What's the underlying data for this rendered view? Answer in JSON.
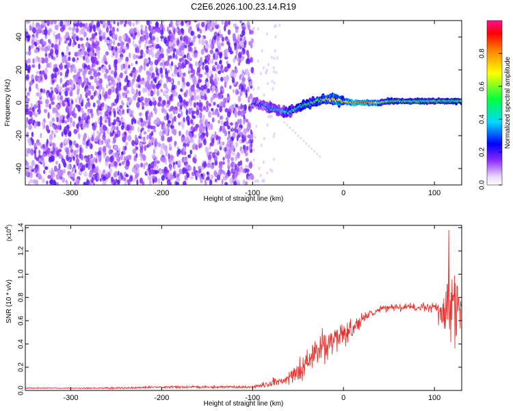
{
  "title": "C2E6.2026.100.23.14.R19",
  "chart_data": [
    {
      "type": "heatmap",
      "xlabel": "Height of straight line (km)",
      "ylabel": "Frequency (Hz)",
      "xlim": [
        -350,
        130
      ],
      "ylim": [
        -50,
        50
      ],
      "xticks": [
        -300,
        -200,
        -100,
        0,
        100
      ],
      "yticks": [
        -40,
        -20,
        0,
        20,
        40
      ],
      "colorbar": {
        "label": "Normalized spectral amplitude",
        "range": [
          0,
          1
        ],
        "ticks": [
          0.0,
          0.2,
          0.4,
          0.6,
          0.8
        ],
        "tick_labels": [
          "0.0",
          "0.2",
          "0.4",
          "0.6",
          "0.8"
        ]
      },
      "grid": false,
      "ridge": {
        "x": [
          -100,
          -90,
          -80,
          -70,
          -60,
          -50,
          -40,
          -30,
          -20,
          -10,
          0,
          10,
          20,
          30,
          40,
          50,
          60,
          70,
          80,
          90,
          100,
          110,
          120,
          130
        ],
        "y": [
          0,
          -1,
          -3,
          -5,
          -6,
          -3,
          -1,
          1,
          2,
          2,
          1,
          0,
          0,
          0,
          0,
          1,
          1,
          1,
          1,
          1,
          1,
          1,
          1,
          1
        ],
        "amplitude": [
          0.3,
          0.3,
          0.4,
          0.4,
          0.5,
          0.5,
          0.6,
          0.6,
          0.7,
          0.8,
          0.7,
          0.9,
          0.95,
          0.9,
          0.7,
          0.6,
          0.6,
          0.6,
          0.6,
          0.6,
          0.6,
          0.6,
          0.6,
          0.6
        ]
      },
      "noise_region_x": [
        -350,
        -100
      ],
      "noise_amplitude": 0.25
    },
    {
      "type": "line",
      "xlabel": "Height of straight line (km)",
      "ylabel": "SNR (10 * v/v)",
      "yscale_label": "(x10",
      "yscale_exponent": "4",
      "yscale_close": ")",
      "xlim": [
        -350,
        130
      ],
      "ylim": [
        0,
        1.42
      ],
      "xticks": [
        -300,
        -200,
        -100,
        0,
        100
      ],
      "yticks": [
        0.0,
        0.2,
        0.4,
        0.6,
        0.8,
        1.0,
        1.2,
        1.4
      ],
      "ytick_labels": [
        "0.0",
        "0.2",
        "0.4",
        "0.6",
        "0.8",
        "1.0",
        "1.2",
        "1.4"
      ],
      "grid": false,
      "series": [
        {
          "color": "#e8322d",
          "x": [
            -350,
            -300,
            -250,
            -200,
            -150,
            -100,
            -80,
            -60,
            -50,
            -40,
            -30,
            -20,
            -10,
            0,
            10,
            20,
            30,
            40,
            50,
            60,
            70,
            80,
            90,
            100,
            105,
            110,
            115,
            120,
            125,
            130
          ],
          "y": [
            0.02,
            0.02,
            0.02,
            0.03,
            0.03,
            0.03,
            0.06,
            0.1,
            0.15,
            0.22,
            0.3,
            0.38,
            0.44,
            0.5,
            0.52,
            0.6,
            0.66,
            0.7,
            0.71,
            0.72,
            0.72,
            0.71,
            0.72,
            0.72,
            0.7,
            0.7,
            0.72,
            0.75,
            0.7,
            0.72
          ],
          "noise": [
            0.005,
            0.005,
            0.008,
            0.01,
            0.01,
            0.01,
            0.03,
            0.05,
            0.08,
            0.12,
            0.14,
            0.14,
            0.12,
            0.1,
            0.08,
            0.06,
            0.04,
            0.03,
            0.03,
            0.03,
            0.03,
            0.03,
            0.04,
            0.06,
            0.12,
            0.2,
            0.3,
            0.35,
            0.3,
            0.25
          ]
        }
      ]
    }
  ]
}
